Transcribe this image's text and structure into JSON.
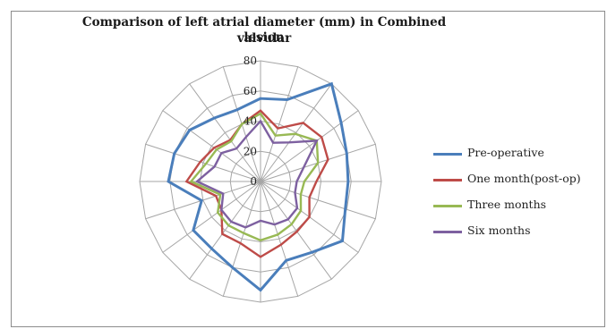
{
  "chart_data": {
    "type": "radar",
    "title_line1": "Comparison of left atrial diameter (mm) in Combined valvular",
    "title_line2": "lesion",
    "rlim": [
      0,
      80
    ],
    "ticks": [
      "0",
      "20",
      "40",
      "60",
      "80"
    ],
    "tick_values": [
      0,
      20,
      40,
      60,
      80
    ],
    "num_axes": 20,
    "grid": true,
    "legend_position": "right",
    "series": [
      {
        "name": "Pre-operative",
        "color": "#4a7ebb",
        "values": [
          55,
          57,
          80,
          66,
          60,
          58,
          59,
          67,
          58,
          55,
          72,
          60,
          55,
          55,
          41,
          61,
          60,
          58,
          52,
          50
        ]
      },
      {
        "name": "One month(post-op)",
        "color": "#be4b48",
        "values": [
          47,
          37,
          48,
          50,
          47,
          37,
          34,
          40,
          41,
          44,
          50,
          43,
          43,
          32,
          31,
          49,
          42,
          38,
          34,
          40
        ]
      },
      {
        "name": "Three months",
        "color": "#98b954",
        "values": [
          45,
          32,
          39,
          46,
          40,
          29,
          28,
          33,
          35,
          37,
          39,
          36,
          36,
          35,
          28,
          46,
          38,
          36,
          33,
          40
        ]
      },
      {
        "name": "Six months",
        "color": "#7d60a0",
        "values": [
          40,
          27,
          32,
          46,
          30,
          24,
          24,
          30,
          31,
          30,
          26,
          32,
          33,
          32,
          26,
          42,
          32,
          32,
          27,
          31
        ]
      }
    ]
  }
}
